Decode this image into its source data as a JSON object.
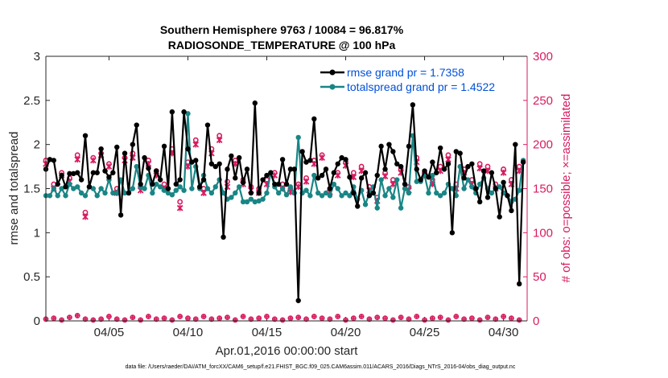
{
  "chart_data": {
    "type": "line",
    "title_line1": "Southern Hemisphere 9763 / 10084 = 96.817%",
    "title_line2": "RADIOSONDE_TEMPERATURE @ 100 hPa",
    "xlabel": "Apr.01,2016 00:00:00 start",
    "ylabel_left": "rmse and totalspread",
    "ylabel_right": "# of obs: o=possible; ×=assimilated",
    "ylim_left": [
      0,
      3
    ],
    "ylim_right": [
      0,
      300
    ],
    "xlim": [
      1,
      31.5
    ],
    "xticks": [
      5,
      10,
      15,
      20,
      25,
      30
    ],
    "xtick_labels": [
      "04/05",
      "04/10",
      "04/15",
      "04/20",
      "04/25",
      "04/30"
    ],
    "yticks_left": [
      0,
      0.5,
      1,
      1.5,
      2,
      2.5,
      3
    ],
    "ytick_labels_left": [
      "0",
      "0.5",
      "1",
      "1.5",
      "2",
      "2.5",
      "3"
    ],
    "yticks_right": [
      0,
      50,
      100,
      150,
      200,
      250,
      300
    ],
    "ytick_labels_right": [
      "0",
      "50",
      "100",
      "150",
      "200",
      "250",
      "300"
    ],
    "legend": [
      "rmse grand pr = 1.7358",
      "totalspread grand pr = 1.4522"
    ],
    "series": [
      {
        "name": "rmse",
        "color": "#000000",
        "x": [
          1.0,
          1.25,
          1.5,
          1.75,
          2.0,
          2.25,
          2.5,
          2.75,
          3.0,
          3.25,
          3.5,
          3.75,
          4.0,
          4.25,
          4.5,
          4.75,
          5.0,
          5.25,
          5.5,
          5.75,
          6.0,
          6.25,
          6.5,
          6.75,
          7.0,
          7.25,
          7.5,
          7.75,
          8.0,
          8.25,
          8.5,
          8.75,
          9.0,
          9.25,
          9.5,
          9.75,
          10.0,
          10.25,
          10.5,
          10.75,
          11.0,
          11.25,
          11.5,
          11.75,
          12.0,
          12.25,
          12.5,
          12.75,
          13.0,
          13.25,
          13.5,
          13.75,
          14.0,
          14.25,
          14.5,
          14.75,
          15.0,
          15.25,
          15.5,
          15.75,
          16.0,
          16.25,
          16.5,
          16.75,
          17.0,
          17.25,
          17.5,
          17.75,
          18.0,
          18.25,
          18.5,
          18.75,
          19.0,
          19.25,
          19.5,
          19.75,
          20.0,
          20.25,
          20.5,
          20.75,
          21.0,
          21.25,
          21.5,
          21.75,
          22.0,
          22.25,
          22.5,
          22.75,
          23.0,
          23.25,
          23.5,
          23.75,
          24.0,
          24.25,
          24.5,
          24.75,
          25.0,
          25.25,
          25.5,
          25.75,
          26.0,
          26.25,
          26.5,
          26.75,
          27.0,
          27.25,
          27.5,
          27.75,
          28.0,
          28.25,
          28.5,
          28.75,
          29.0,
          29.25,
          29.5,
          29.75,
          30.0,
          30.25,
          30.5,
          30.75,
          31.0,
          31.25
        ],
        "values": [
          1.72,
          1.83,
          1.82,
          1.55,
          1.65,
          1.52,
          1.67,
          1.67,
          1.68,
          1.6,
          2.1,
          1.52,
          1.68,
          1.68,
          1.95,
          1.7,
          1.63,
          1.68,
          1.97,
          1.2,
          1.9,
          1.45,
          2.0,
          2.22,
          1.55,
          1.85,
          1.73,
          1.55,
          1.7,
          1.6,
          1.98,
          1.5,
          2.37,
          1.55,
          1.6,
          2.37,
          1.95,
          1.8,
          1.82,
          1.52,
          1.6,
          2.22,
          1.78,
          1.75,
          1.78,
          0.95,
          1.72,
          1.87,
          1.62,
          1.85,
          1.57,
          1.72,
          1.45,
          2.47,
          1.45,
          1.6,
          1.65,
          1.68,
          1.55,
          1.55,
          1.83,
          1.55,
          1.72,
          1.72,
          0.23,
          1.92,
          1.8,
          1.82,
          2.29,
          1.62,
          1.65,
          1.72,
          1.5,
          1.68,
          1.78,
          1.85,
          1.83,
          1.63,
          1.45,
          1.3,
          1.62,
          1.68,
          1.42,
          1.45,
          1.65,
          1.98,
          1.72,
          2.0,
          1.92,
          1.78,
          1.75,
          1.55,
          1.98,
          2.45,
          1.72,
          1.6,
          1.7,
          1.63,
          1.8,
          1.68,
          1.96,
          1.72,
          1.78,
          1.0,
          1.92,
          1.9,
          1.62,
          1.75,
          1.78,
          1.5,
          1.35,
          1.7,
          1.4,
          1.68,
          1.5,
          1.18,
          1.57,
          1.42,
          1.25,
          2.0,
          0.42,
          1.8
        ]
      },
      {
        "name": "totalspread",
        "color": "#1a8585",
        "x": [
          1.0,
          1.25,
          1.5,
          1.75,
          2.0,
          2.25,
          2.5,
          2.75,
          3.0,
          3.25,
          3.5,
          3.75,
          4.0,
          4.25,
          4.5,
          4.75,
          5.0,
          5.25,
          5.5,
          5.75,
          6.0,
          6.25,
          6.5,
          6.75,
          7.0,
          7.25,
          7.5,
          7.75,
          8.0,
          8.25,
          8.5,
          8.75,
          9.0,
          9.25,
          9.5,
          9.75,
          10.0,
          10.25,
          10.5,
          10.75,
          11.0,
          11.25,
          11.5,
          11.75,
          12.0,
          12.25,
          12.5,
          12.75,
          13.0,
          13.25,
          13.5,
          13.75,
          14.0,
          14.25,
          14.5,
          14.75,
          15.0,
          15.25,
          15.5,
          15.75,
          16.0,
          16.25,
          16.5,
          16.75,
          17.0,
          17.25,
          17.5,
          17.75,
          18.0,
          18.25,
          18.5,
          18.75,
          19.0,
          19.25,
          19.5,
          19.75,
          20.0,
          20.25,
          20.5,
          20.75,
          21.0,
          21.25,
          21.5,
          21.75,
          22.0,
          22.25,
          22.5,
          22.75,
          23.0,
          23.25,
          23.5,
          23.75,
          24.0,
          24.25,
          24.5,
          24.75,
          25.0,
          25.25,
          25.5,
          25.75,
          26.0,
          26.25,
          26.5,
          26.75,
          27.0,
          27.25,
          27.5,
          27.75,
          28.0,
          28.25,
          28.5,
          28.75,
          29.0,
          29.25,
          29.5,
          29.75,
          30.0,
          30.25,
          30.5,
          30.75,
          31.0,
          31.25
        ],
        "values": [
          1.42,
          1.42,
          1.5,
          1.42,
          1.5,
          1.42,
          1.55,
          1.5,
          1.52,
          1.45,
          1.42,
          1.52,
          1.5,
          1.42,
          1.5,
          1.45,
          1.6,
          1.45,
          1.45,
          1.6,
          1.45,
          1.45,
          1.5,
          1.75,
          1.52,
          1.5,
          1.65,
          1.45,
          1.55,
          1.52,
          1.48,
          1.45,
          1.43,
          1.48,
          1.52,
          1.48,
          2.35,
          1.5,
          1.75,
          1.5,
          1.65,
          1.5,
          1.45,
          1.52,
          1.6,
          1.45,
          1.38,
          1.4,
          1.45,
          1.52,
          1.35,
          1.35,
          1.38,
          1.35,
          1.36,
          1.38,
          1.45,
          1.68,
          1.52,
          1.45,
          1.5,
          1.43,
          1.52,
          1.45,
          2.08,
          1.45,
          1.48,
          1.42,
          1.65,
          1.45,
          1.42,
          1.45,
          1.42,
          1.55,
          1.5,
          1.42,
          1.45,
          1.42,
          1.52,
          1.38,
          1.48,
          1.32,
          1.45,
          1.52,
          1.28,
          1.6,
          1.42,
          1.5,
          1.4,
          1.6,
          1.28,
          1.5,
          1.45,
          2.1,
          1.58,
          1.58,
          1.65,
          1.45,
          1.65,
          1.45,
          1.42,
          1.45,
          1.55,
          1.5,
          1.42,
          1.75,
          1.5,
          1.6,
          1.52,
          1.45,
          1.55,
          1.62,
          1.5,
          1.45,
          1.5,
          1.52,
          1.45,
          1.42,
          1.35,
          1.38,
          1.48,
          1.82
        ]
      }
    ],
    "obs_possible": {
      "marker": "o",
      "color": "#d81b60",
      "x": [
        1.0,
        1.5,
        2.0,
        2.5,
        3.0,
        3.5,
        4.0,
        4.5,
        5.0,
        5.5,
        6.0,
        6.5,
        7.0,
        7.5,
        8.0,
        8.5,
        9.0,
        9.5,
        10.0,
        10.5,
        11.0,
        11.5,
        12.0,
        12.5,
        13.0,
        13.5,
        14.0,
        14.5,
        15.0,
        15.5,
        16.0,
        16.5,
        17.0,
        17.5,
        18.0,
        18.5,
        19.0,
        19.5,
        20.0,
        20.5,
        21.0,
        21.5,
        22.0,
        22.5,
        23.0,
        23.5,
        24.0,
        24.5,
        25.0,
        25.5,
        26.0,
        26.5,
        27.0,
        27.5,
        28.0,
        28.5,
        29.0,
        29.5,
        30.0,
        30.5,
        31.0
      ],
      "values": [
        182,
        155,
        168,
        162,
        188,
        123,
        185,
        190,
        178,
        150,
        185,
        190,
        152,
        182,
        170,
        155,
        195,
        135,
        180,
        205,
        150,
        195,
        210,
        158,
        182,
        160,
        152,
        150,
        160,
        168,
        155,
        150,
        155,
        162,
        182,
        188,
        150,
        168,
        180,
        168,
        175,
        152,
        140,
        168,
        160,
        172,
        152,
        185,
        168,
        160,
        175,
        188,
        155,
        172,
        160,
        178,
        175,
        155,
        172,
        160,
        175
      ]
    },
    "obs_assimilated": {
      "marker": "x",
      "color": "#d81b60",
      "x": [
        1.0,
        1.5,
        2.0,
        2.5,
        3.0,
        3.5,
        4.0,
        4.5,
        5.0,
        5.5,
        6.0,
        6.5,
        7.0,
        7.5,
        8.0,
        8.5,
        9.0,
        9.5,
        10.0,
        10.5,
        11.0,
        11.5,
        12.0,
        12.5,
        13.0,
        13.5,
        14.0,
        14.5,
        15.0,
        15.5,
        16.0,
        16.5,
        17.0,
        17.5,
        18.0,
        18.5,
        19.0,
        19.5,
        20.0,
        20.5,
        21.0,
        21.5,
        22.0,
        22.5,
        23.0,
        23.5,
        24.0,
        24.5,
        25.0,
        25.5,
        26.0,
        26.5,
        27.0,
        27.5,
        28.0,
        28.5,
        29.0,
        29.5,
        30.0,
        30.5,
        31.0
      ],
      "values": [
        178,
        150,
        165,
        158,
        183,
        118,
        182,
        188,
        175,
        145,
        182,
        185,
        148,
        178,
        165,
        150,
        190,
        128,
        175,
        200,
        145,
        190,
        205,
        152,
        178,
        155,
        148,
        145,
        155,
        165,
        150,
        146,
        152,
        158,
        178,
        185,
        146,
        165,
        176,
        163,
        170,
        148,
        136,
        164,
        155,
        168,
        148,
        180,
        165,
        155,
        170,
        183,
        150,
        168,
        155,
        173,
        170,
        150,
        168,
        155,
        170
      ]
    },
    "obs_rejected": {
      "x": [
        1.0,
        1.5,
        2.0,
        2.5,
        3.0,
        3.5,
        4.0,
        4.5,
        5.0,
        5.5,
        6.0,
        6.5,
        7.0,
        7.5,
        8.0,
        8.5,
        9.0,
        9.5,
        10.0,
        10.5,
        11.0,
        11.5,
        12.0,
        12.5,
        13.0,
        13.5,
        14.0,
        14.5,
        15.0,
        15.5,
        16.0,
        16.5,
        17.0,
        17.5,
        18.0,
        18.5,
        19.0,
        19.5,
        20.0,
        20.5,
        21.0,
        21.5,
        22.0,
        22.5,
        23.0,
        23.5,
        24.0,
        24.5,
        25.0,
        25.5,
        26.0,
        26.5,
        27.0,
        27.5,
        28.0,
        28.5,
        29.0,
        29.5,
        30.0,
        30.5,
        31.0
      ],
      "values": [
        2,
        3,
        1,
        4,
        6,
        2,
        1,
        2,
        5,
        2,
        1,
        4,
        1,
        5,
        2,
        3,
        1,
        5,
        3,
        2,
        5,
        2,
        3,
        4,
        1,
        5,
        2,
        3,
        5,
        2,
        1,
        3,
        4,
        2,
        5,
        3,
        2,
        5,
        1,
        3,
        5,
        2,
        4,
        3,
        1,
        4,
        2,
        5,
        1,
        3,
        4,
        1,
        5,
        2,
        3,
        1,
        4,
        2,
        5,
        3,
        1
      ]
    }
  },
  "footer": "data file: /Users/raeder/DAI/ATM_forcXX/CAM6_setup/f.e21.FHIST_BGC.f09_025.CAM6assim.011/ACARS_2016/Diags_NTrS_2016-04/obs_diag_output.nc"
}
